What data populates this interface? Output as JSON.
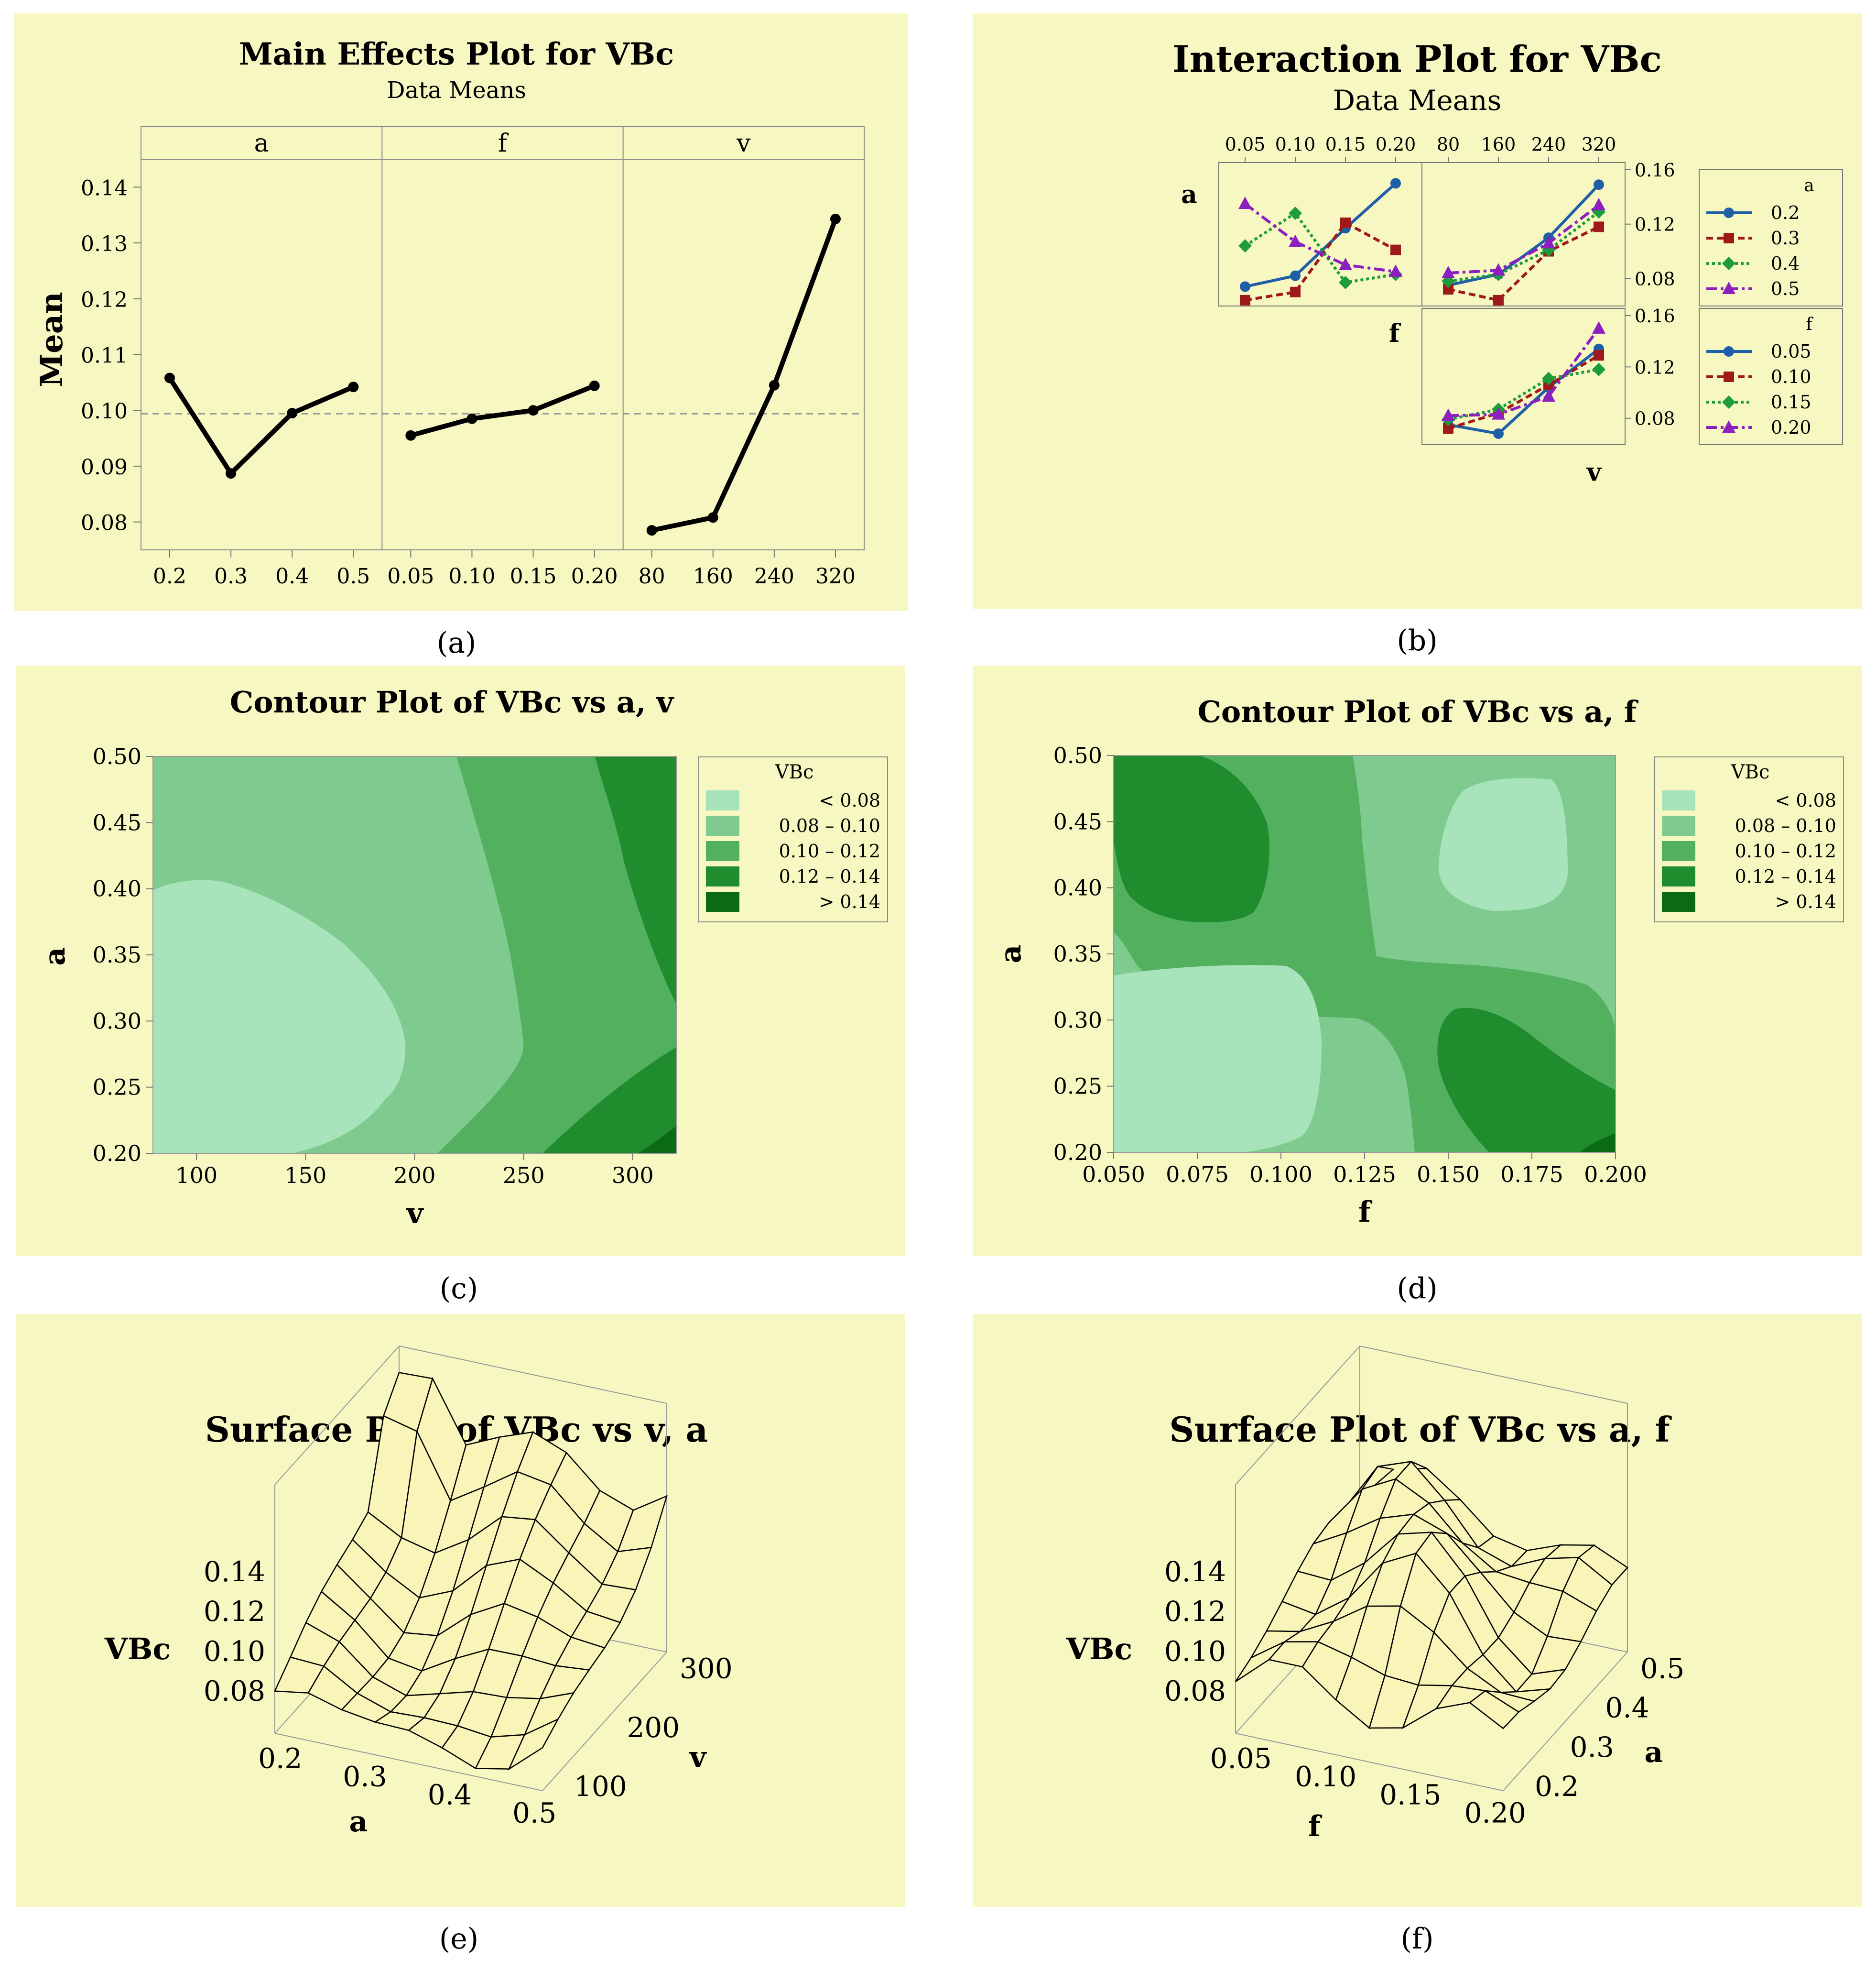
{
  "panel_labels": [
    "(a)",
    "(b)",
    "(c)",
    "(d)",
    "(e)",
    "(f)"
  ],
  "colors": {
    "panel_bg": "#f7f7c1",
    "levels": [
      "#a7e3bb",
      "#7fcb8f",
      "#52b05f",
      "#1f8c2e",
      "#0a6b14"
    ],
    "interaction": [
      "#1f5fa8",
      "#9e1a1a",
      "#1c9c3a",
      "#8b1fbf"
    ]
  },
  "chart_data": [
    {
      "id": "a",
      "type": "line",
      "title": "Main Effects Plot for VBc",
      "subtitle": "Data Means",
      "ylabel": "Mean",
      "ylim": [
        0.075,
        0.145
      ],
      "yticks": [
        "0.08",
        "0.09",
        "0.10",
        "0.11",
        "0.12",
        "0.13",
        "0.14"
      ],
      "reference_mean": 0.0994,
      "facets": [
        {
          "name": "a",
          "categories": [
            "0.2",
            "0.3",
            "0.4",
            "0.5"
          ],
          "values": [
            0.1058,
            0.0887,
            0.0995,
            0.1042
          ]
        },
        {
          "name": "f",
          "categories": [
            "0.05",
            "0.10",
            "0.15",
            "0.20"
          ],
          "values": [
            0.0955,
            0.0985,
            0.1,
            0.1044
          ]
        },
        {
          "name": "v",
          "categories": [
            "80",
            "160",
            "240",
            "320"
          ],
          "values": [
            0.0785,
            0.0808,
            0.1045,
            0.1343
          ]
        }
      ]
    },
    {
      "id": "b",
      "type": "line",
      "title": "Interaction Plot for VBc",
      "subtitle": "Data Means",
      "row_labels": [
        "a",
        "f"
      ],
      "col_labels": [
        "f",
        "v"
      ],
      "top_ticks_f": [
        "0.05",
        "0.10",
        "0.15",
        "0.20"
      ],
      "top_ticks_v": [
        "80",
        "160",
        "240",
        "320"
      ],
      "right_ticks": [
        "0.16",
        "0.12",
        "0.08"
      ],
      "right_ticks_lower": [
        "0.16",
        "0.12",
        "0.08"
      ],
      "ylim": [
        0.065,
        0.16
      ],
      "legend_a": {
        "title": "a",
        "entries": [
          "0.2",
          "0.3",
          "0.4",
          "0.5"
        ]
      },
      "legend_f": {
        "title": "f",
        "entries": [
          "0.05",
          "0.10",
          "0.15",
          "0.20"
        ]
      },
      "panel_a_f": [
        {
          "name": "0.2",
          "values": [
            0.074,
            0.082,
            0.117,
            0.15
          ]
        },
        {
          "name": "0.3",
          "values": [
            0.064,
            0.07,
            0.121,
            0.101
          ]
        },
        {
          "name": "0.4",
          "values": [
            0.104,
            0.128,
            0.077,
            0.083
          ]
        },
        {
          "name": "0.5",
          "values": [
            0.135,
            0.107,
            0.09,
            0.085
          ]
        }
      ],
      "panel_a_v": [
        {
          "name": "0.2",
          "values": [
            0.075,
            0.083,
            0.11,
            0.149
          ]
        },
        {
          "name": "0.3",
          "values": [
            0.072,
            0.064,
            0.1,
            0.118
          ]
        },
        {
          "name": "0.4",
          "values": [
            0.078,
            0.083,
            0.101,
            0.129
          ]
        },
        {
          "name": "0.5",
          "values": [
            0.084,
            0.086,
            0.106,
            0.134
          ]
        }
      ],
      "panel_f_v": [
        {
          "name": "0.05",
          "values": [
            0.075,
            0.068,
            0.104,
            0.134
          ]
        },
        {
          "name": "0.10",
          "values": [
            0.072,
            0.084,
            0.106,
            0.129
          ]
        },
        {
          "name": "0.15",
          "values": [
            0.079,
            0.087,
            0.111,
            0.118
          ]
        },
        {
          "name": "0.20",
          "values": [
            0.082,
            0.083,
            0.097,
            0.15
          ]
        }
      ]
    },
    {
      "id": "c",
      "type": "contour",
      "title": "Contour Plot of VBc vs a, v",
      "xlabel": "v",
      "ylabel": "a",
      "xlim": [
        80,
        320
      ],
      "ylim": [
        0.2,
        0.5
      ],
      "xticks": [
        "100",
        "150",
        "200",
        "250",
        "300"
      ],
      "yticks": [
        "0.20",
        "0.25",
        "0.30",
        "0.35",
        "0.40",
        "0.45",
        "0.50"
      ],
      "legend": {
        "title": "VBc",
        "ranges": [
          "< 0.08",
          "0.08 – 0.10",
          "0.10 – 0.12",
          "0.12 – 0.14",
          "> 0.14"
        ]
      }
    },
    {
      "id": "d",
      "type": "contour",
      "title": "Contour Plot of VBc vs a, f",
      "xlabel": "f",
      "ylabel": "a",
      "xlim": [
        0.05,
        0.2
      ],
      "ylim": [
        0.2,
        0.5
      ],
      "xticks": [
        "0.050",
        "0.075",
        "0.100",
        "0.125",
        "0.150",
        "0.175",
        "0.200"
      ],
      "yticks": [
        "0.20",
        "0.25",
        "0.30",
        "0.35",
        "0.40",
        "0.45",
        "0.50"
      ],
      "legend": {
        "title": "VBc",
        "ranges": [
          "< 0.08",
          "0.08 – 0.10",
          "0.10 – 0.12",
          "0.12 – 0.14",
          "> 0.14"
        ]
      }
    },
    {
      "id": "e",
      "type": "surface",
      "title": "Surface Plot of VBc vs v, a",
      "zlabel": "VBc",
      "zticks": [
        "0.14",
        "0.12",
        "0.10",
        "0.08"
      ],
      "xlabel": "a",
      "xticks": [
        "0.2",
        "0.3",
        "0.4",
        "0.5"
      ],
      "ylabel": "v",
      "yticks": [
        "300",
        "200",
        "100"
      ]
    },
    {
      "id": "f",
      "type": "surface",
      "title": "Surface Plot of VBc vs a, f",
      "zlabel": "VBc",
      "zticks": [
        "0.14",
        "0.12",
        "0.10",
        "0.08"
      ],
      "xlabel": "f",
      "xticks": [
        "0.05",
        "0.10",
        "0.15",
        "0.20"
      ],
      "ylabel": "a",
      "yticks": [
        "0.5",
        "0.4",
        "0.3",
        "0.2"
      ]
    }
  ]
}
